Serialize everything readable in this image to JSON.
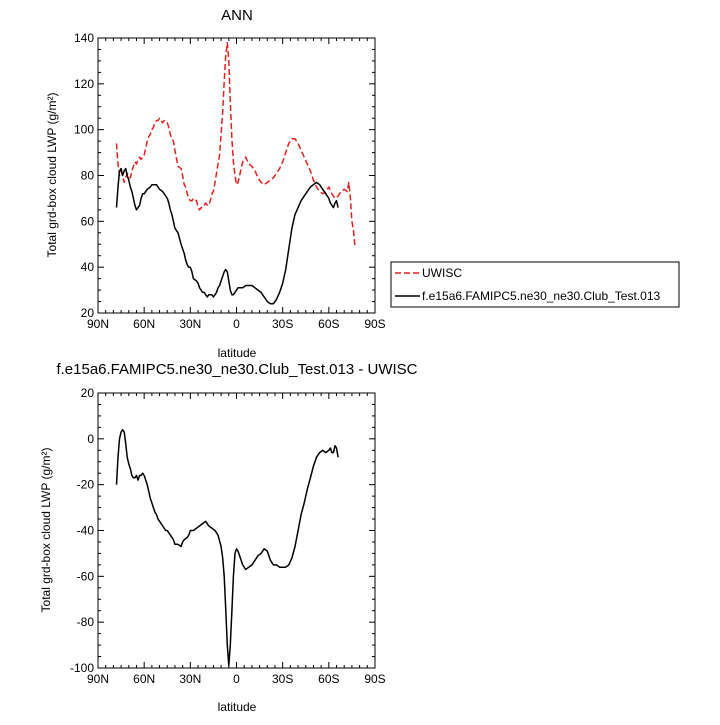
{
  "chart_data": [
    {
      "type": "line",
      "title": "ANN",
      "xlabel": "latitude",
      "ylabel": "Total grd-box cloud LWP (g/m²)",
      "xlim": [
        90,
        -90
      ],
      "ylim": [
        20,
        140
      ],
      "x_ticks": [
        90,
        60,
        30,
        0,
        -30,
        -60,
        -90
      ],
      "x_tick_labels": [
        "90N",
        "60N",
        "30N",
        "0",
        "30S",
        "60S",
        "90S"
      ],
      "y_ticks": [
        20,
        40,
        60,
        80,
        100,
        120,
        140
      ],
      "y_tick_labels": [
        "20",
        "40",
        "60",
        "80",
        "100",
        "120",
        "140"
      ],
      "legend_position": "right",
      "series": [
        {
          "name": "UWISC",
          "color": "#e8201c",
          "dash": "dashed",
          "x": [
            78,
            77,
            76,
            75,
            74,
            73,
            72,
            71,
            70,
            69,
            68,
            67,
            66,
            65,
            64,
            63,
            62,
            61,
            60,
            59,
            58,
            57,
            56,
            55,
            54,
            53,
            52,
            51,
            50,
            49,
            48,
            47,
            46,
            45,
            44,
            43,
            42,
            41,
            40,
            38,
            36,
            35,
            34,
            33,
            32,
            31,
            30,
            29,
            28,
            26,
            25,
            24,
            23,
            22,
            21,
            20,
            19,
            18,
            17,
            16,
            15,
            14,
            13,
            12,
            11,
            10,
            9,
            8,
            7,
            6,
            5,
            4,
            3,
            2,
            1,
            0,
            -1,
            -2,
            -4,
            -6,
            -8,
            -10,
            -12,
            -14,
            -16,
            -18,
            -20,
            -22,
            -24,
            -26,
            -28,
            -30,
            -32,
            -34,
            -36,
            -38,
            -40,
            -42,
            -44,
            -46,
            -48,
            -50,
            -52,
            -54,
            -56,
            -58,
            -60,
            -62,
            -64,
            -66,
            -68,
            -70,
            -72,
            -73,
            -74,
            -75,
            -76,
            -77
          ],
          "y": [
            94,
            85,
            80,
            82,
            80,
            77,
            79,
            81,
            80,
            79,
            82,
            84,
            86,
            85,
            87,
            88,
            87,
            88,
            89,
            92,
            95,
            97,
            98,
            100,
            101,
            103,
            104,
            104,
            105,
            104,
            103,
            104,
            103,
            103,
            101,
            98,
            96,
            95,
            91,
            84,
            83,
            80,
            76,
            75,
            72,
            70,
            69,
            69,
            70,
            69,
            66,
            65,
            66,
            66,
            67,
            68,
            67,
            67,
            69,
            72,
            73,
            77,
            81,
            85,
            89,
            98,
            108,
            121,
            132,
            138,
            130,
            112,
            96,
            86,
            80,
            76,
            77,
            80,
            86,
            88,
            85,
            84,
            82,
            79,
            77,
            76,
            77,
            78,
            79,
            81,
            83,
            86,
            90,
            94,
            96,
            96,
            94,
            91,
            88,
            85,
            82,
            78,
            75,
            73,
            72,
            73,
            75,
            72,
            70,
            71,
            73,
            74,
            73,
            77,
            70,
            60,
            56,
            49
          ]
        },
        {
          "name": "f.e15a6.FAMIPC5.ne30_ne30.Club_Test.013",
          "color": "#000000",
          "dash": "solid",
          "x": [
            78,
            77,
            76,
            75,
            74,
            73,
            72,
            71,
            70,
            69,
            68,
            67,
            66,
            65,
            64,
            63,
            62,
            61,
            60,
            58,
            56,
            55,
            54,
            53,
            52,
            51,
            50,
            48,
            46,
            45,
            44,
            43,
            42,
            41,
            40,
            38,
            36,
            35,
            34,
            33,
            32,
            31,
            30,
            29,
            28,
            26,
            25,
            24,
            23,
            22,
            21,
            20,
            19,
            18,
            17,
            16,
            15,
            14,
            13,
            12,
            11,
            10,
            9,
            8,
            7,
            6,
            5,
            4,
            3,
            2,
            1,
            0,
            -1,
            -2,
            -4,
            -6,
            -8,
            -10,
            -12,
            -14,
            -16,
            -18,
            -20,
            -22,
            -24,
            -26,
            -28,
            -30,
            -32,
            -34,
            -36,
            -38,
            -40,
            -42,
            -44,
            -46,
            -48,
            -50,
            -52,
            -54,
            -56,
            -58,
            -60,
            -61,
            -62,
            -63,
            -64,
            -65,
            -66
          ],
          "y": [
            66,
            75,
            82,
            83,
            80,
            82,
            83,
            80,
            78,
            75,
            73,
            70,
            67,
            65,
            66,
            67,
            70,
            72,
            72,
            74,
            75,
            76,
            76,
            76,
            76,
            75,
            74,
            73,
            71,
            70,
            68,
            65,
            63,
            60,
            57,
            55,
            50,
            48,
            46,
            43,
            41,
            40,
            40,
            38,
            35,
            34,
            33,
            31,
            30,
            29,
            29,
            28,
            27,
            28,
            28,
            28,
            27,
            28,
            29,
            31,
            32,
            34,
            36,
            38,
            39,
            38,
            34,
            30,
            28,
            28,
            29,
            30,
            31,
            31,
            31,
            32,
            32,
            32,
            31,
            30,
            29,
            27,
            25,
            24,
            24,
            26,
            29,
            33,
            39,
            48,
            57,
            63,
            66,
            69,
            71,
            73,
            75,
            76,
            77,
            76,
            74,
            72,
            70,
            68,
            67,
            66,
            68,
            69,
            66
          ]
        }
      ]
    },
    {
      "type": "line",
      "title": "f.e15a6.FAMIPC5.ne30_ne30.Club_Test.013 - UWISC",
      "xlabel": "latitude",
      "ylabel": "Total grd-box cloud LWP (g/m²)",
      "xlim": [
        90,
        -90
      ],
      "ylim": [
        -100,
        20
      ],
      "x_ticks": [
        90,
        60,
        30,
        0,
        -30,
        -60,
        -90
      ],
      "x_tick_labels": [
        "90N",
        "60N",
        "30N",
        "0",
        "30S",
        "60S",
        "90S"
      ],
      "y_ticks": [
        -100,
        -80,
        -60,
        -40,
        -20,
        0,
        20
      ],
      "y_tick_labels": [
        "-100",
        "-80",
        "-60",
        "-40",
        "-20",
        "0",
        "20"
      ],
      "series": [
        {
          "color": "#000000",
          "dash": "solid",
          "x": [
            78,
            77,
            76,
            75,
            74,
            73,
            72,
            71,
            70,
            69,
            68,
            67,
            66,
            65,
            64,
            63,
            62,
            61,
            60,
            59,
            58,
            57,
            56,
            55,
            54,
            53,
            52,
            51,
            50,
            48,
            46,
            45,
            44,
            43,
            42,
            41,
            40,
            38,
            36,
            35,
            34,
            32,
            31,
            30,
            28,
            26,
            24,
            22,
            20,
            18,
            16,
            14,
            12,
            10,
            9,
            8,
            7,
            6,
            5,
            4,
            3,
            2,
            1,
            0,
            -1,
            -2,
            -4,
            -6,
            -8,
            -10,
            -12,
            -14,
            -16,
            -18,
            -20,
            -22,
            -24,
            -26,
            -28,
            -30,
            -32,
            -34,
            -36,
            -38,
            -40,
            -42,
            -44,
            -46,
            -48,
            -50,
            -52,
            -54,
            -56,
            -58,
            -60,
            -61,
            -62,
            -63,
            -64,
            -65,
            -66
          ],
          "y": [
            -20,
            -8,
            0,
            3,
            4,
            3,
            -2,
            -8,
            -11,
            -13,
            -16,
            -17,
            -17,
            -16,
            -18,
            -16,
            -16,
            -15,
            -16,
            -18,
            -20,
            -23,
            -26,
            -28,
            -30,
            -32,
            -33,
            -35,
            -36,
            -38,
            -40,
            -40,
            -41,
            -42,
            -43,
            -44,
            -46,
            -46,
            -47,
            -45,
            -44,
            -43,
            -42,
            -40,
            -40,
            -39,
            -38,
            -37,
            -36,
            -38,
            -39,
            -40,
            -42,
            -47,
            -52,
            -60,
            -74,
            -90,
            -99,
            -90,
            -75,
            -60,
            -50,
            -48,
            -49,
            -51,
            -55,
            -57,
            -56,
            -55,
            -53,
            -51,
            -50,
            -48,
            -49,
            -53,
            -55,
            -55,
            -56,
            -56,
            -56,
            -55,
            -52,
            -47,
            -40,
            -33,
            -28,
            -22,
            -17,
            -12,
            -8,
            -6,
            -5,
            -6,
            -5,
            -4,
            -6,
            -6,
            -3,
            -4,
            -8
          ]
        }
      ]
    }
  ]
}
